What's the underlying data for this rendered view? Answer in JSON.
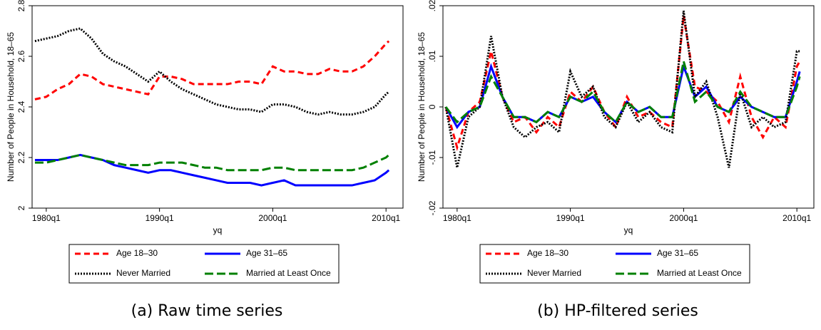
{
  "chart_data": [
    {
      "type": "line",
      "caption": "(a) Raw time series",
      "xlabel": "yq",
      "ylabel": "Number of People in Household, 18–65",
      "x": [
        "1979q1",
        "1980q1",
        "1981q1",
        "1982q1",
        "1983q1",
        "1984q1",
        "1985q1",
        "1986q1",
        "1987q1",
        "1988q1",
        "1989q1",
        "1990q1",
        "1991q1",
        "1992q1",
        "1993q1",
        "1994q1",
        "1995q1",
        "1996q1",
        "1997q1",
        "1998q1",
        "1999q1",
        "2000q1",
        "2001q1",
        "2002q1",
        "2003q1",
        "2004q1",
        "2005q1",
        "2006q1",
        "2007q1",
        "2008q1",
        "2009q1",
        "2010q1",
        "2010q2"
      ],
      "xlim": [
        "1978q4",
        "2011q3"
      ],
      "xticks": [
        "1980q1",
        "1990q1",
        "2000q1",
        "2010q1"
      ],
      "ylim": [
        2,
        2.8
      ],
      "yticks": [
        2,
        2.2,
        2.4,
        2.6,
        2.8
      ],
      "grid": false,
      "legend": "bottom",
      "series": [
        {
          "name": "Age 18–30",
          "color": "#ff0000",
          "style": "dash",
          "values": [
            2.43,
            2.44,
            2.47,
            2.49,
            2.53,
            2.52,
            2.49,
            2.48,
            2.47,
            2.46,
            2.45,
            2.52,
            2.52,
            2.51,
            2.49,
            2.49,
            2.49,
            2.49,
            2.5,
            2.5,
            2.49,
            2.56,
            2.54,
            2.54,
            2.53,
            2.53,
            2.55,
            2.54,
            2.54,
            2.56,
            2.6,
            2.65,
            2.66
          ]
        },
        {
          "name": "Age 31–65",
          "color": "#0000ff",
          "style": "solid",
          "values": [
            2.19,
            2.19,
            2.19,
            2.2,
            2.21,
            2.2,
            2.19,
            2.17,
            2.16,
            2.15,
            2.14,
            2.15,
            2.15,
            2.14,
            2.13,
            2.12,
            2.11,
            2.1,
            2.1,
            2.1,
            2.09,
            2.1,
            2.11,
            2.09,
            2.09,
            2.09,
            2.09,
            2.09,
            2.09,
            2.1,
            2.11,
            2.14,
            2.15
          ]
        },
        {
          "name": "Never Married",
          "color": "#000000",
          "style": "dot",
          "values": [
            2.66,
            2.67,
            2.68,
            2.7,
            2.71,
            2.67,
            2.61,
            2.58,
            2.56,
            2.53,
            2.5,
            2.54,
            2.5,
            2.47,
            2.45,
            2.43,
            2.41,
            2.4,
            2.39,
            2.39,
            2.38,
            2.41,
            2.41,
            2.4,
            2.38,
            2.37,
            2.38,
            2.37,
            2.37,
            2.38,
            2.4,
            2.45,
            2.46
          ]
        },
        {
          "name": "Married at Least Once",
          "color": "#008000",
          "style": "longdash",
          "values": [
            2.18,
            2.18,
            2.19,
            2.2,
            2.21,
            2.2,
            2.19,
            2.18,
            2.17,
            2.17,
            2.17,
            2.18,
            2.18,
            2.18,
            2.17,
            2.16,
            2.16,
            2.15,
            2.15,
            2.15,
            2.15,
            2.16,
            2.16,
            2.15,
            2.15,
            2.15,
            2.15,
            2.15,
            2.15,
            2.16,
            2.18,
            2.2,
            2.21
          ]
        }
      ]
    },
    {
      "type": "line",
      "caption": "(b) HP-filtered series",
      "xlabel": "yq",
      "ylabel": "Number of People in Household, 18–65",
      "x": [
        "1979q1",
        "1980q1",
        "1981q1",
        "1982q1",
        "1983q1",
        "1984q1",
        "1985q1",
        "1986q1",
        "1987q1",
        "1988q1",
        "1989q1",
        "1990q1",
        "1991q1",
        "1992q1",
        "1993q1",
        "1994q1",
        "1995q1",
        "1996q1",
        "1997q1",
        "1998q1",
        "1999q1",
        "2000q1",
        "2001q1",
        "2002q1",
        "2003q1",
        "2004q1",
        "2005q1",
        "2006q1",
        "2007q1",
        "2008q1",
        "2009q1",
        "2010q1",
        "2010q2"
      ],
      "xlim": [
        "1978q4",
        "2011q3"
      ],
      "xticks": [
        "1980q1",
        "1990q1",
        "2000q1",
        "2010q1"
      ],
      "ylim": [
        -0.02,
        0.02
      ],
      "yticks": [
        {
          "value": -0.02,
          "label": "-.02"
        },
        {
          "value": -0.01,
          "label": "-.01"
        },
        0,
        {
          "value": 0.01,
          "label": ".01"
        },
        {
          "value": 0.02,
          "label": ".02"
        }
      ],
      "grid": false,
      "legend": "bottom",
      "series": [
        {
          "name": "Age 18–30",
          "color": "#ff0000",
          "style": "dash",
          "values": [
            0,
            -0.008,
            -0.001,
            0.001,
            0.011,
            0.002,
            -0.003,
            -0.002,
            -0.005,
            -0.002,
            -0.004,
            0.003,
            0.001,
            0.004,
            -0.001,
            -0.004,
            0.002,
            -0.002,
            -0.001,
            -0.003,
            -0.004,
            0.018,
            0.004,
            0.003,
            0.001,
            -0.003,
            0.006,
            -0.002,
            -0.006,
            -0.002,
            -0.004,
            0.008,
            0.009
          ]
        },
        {
          "name": "Age 31–65",
          "color": "#0000ff",
          "style": "solid",
          "values": [
            0,
            -0.004,
            -0.001,
            0,
            0.008,
            0.002,
            -0.002,
            -0.002,
            -0.003,
            -0.001,
            -0.002,
            0.002,
            0.001,
            0.002,
            -0.001,
            -0.003,
            0.001,
            -0.001,
            0,
            -0.002,
            -0.002,
            0.008,
            0.002,
            0.004,
            0,
            -0.001,
            0.002,
            0,
            -0.001,
            -0.002,
            -0.002,
            0.005,
            0.007
          ]
        },
        {
          "name": "Never Married",
          "color": "#000000",
          "style": "dot",
          "values": [
            0,
            -0.012,
            -0.002,
            0,
            0.014,
            0.002,
            -0.004,
            -0.006,
            -0.004,
            -0.003,
            -0.005,
            0.007,
            0.002,
            0.004,
            -0.002,
            -0.004,
            0.001,
            -0.003,
            -0.001,
            -0.004,
            -0.005,
            0.019,
            0.002,
            0.005,
            -0.002,
            -0.012,
            0.003,
            -0.004,
            -0.002,
            -0.004,
            -0.003,
            0.011,
            0.011
          ]
        },
        {
          "name": "Married at Least Once",
          "color": "#008000",
          "style": "longdash",
          "values": [
            0,
            -0.003,
            -0.001,
            0,
            0.006,
            0.002,
            -0.002,
            -0.002,
            -0.003,
            -0.001,
            -0.002,
            0.002,
            0.001,
            0.003,
            -0.001,
            -0.003,
            0.001,
            -0.001,
            0,
            -0.002,
            -0.002,
            0.009,
            0.001,
            0.003,
            0,
            -0.001,
            0.003,
            0,
            -0.001,
            -0.002,
            -0.002,
            0.004,
            0.006
          ]
        }
      ]
    }
  ]
}
